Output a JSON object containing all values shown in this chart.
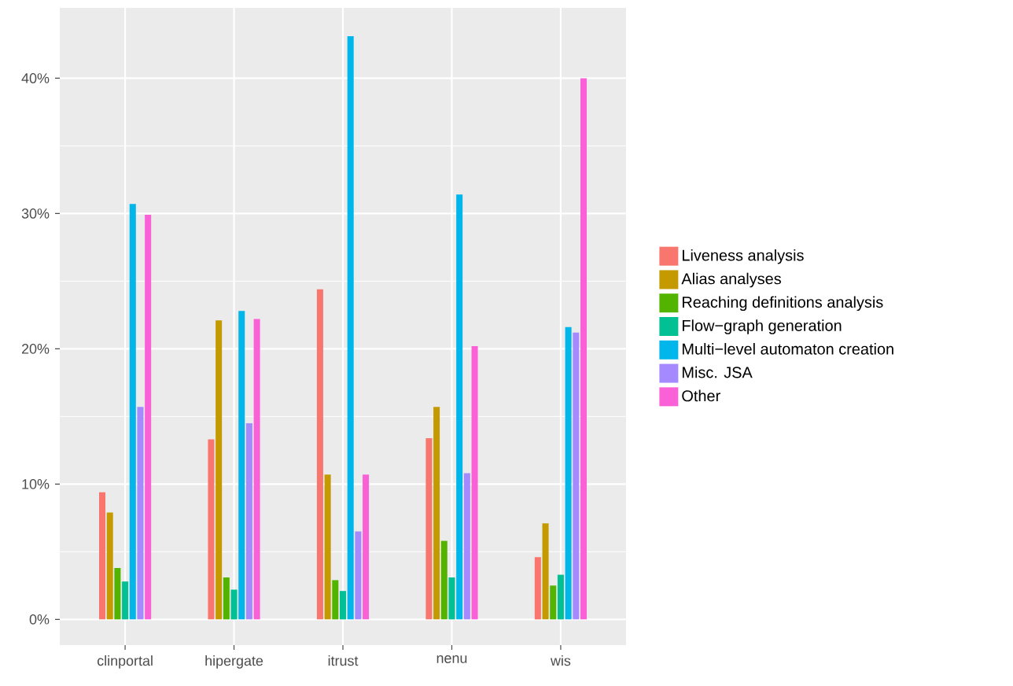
{
  "chart_data": {
    "type": "bar",
    "categories": [
      "clinportal",
      "hipergate",
      "itrust",
      "nenu",
      "wis"
    ],
    "series": [
      {
        "name": "Liveness analysis",
        "color": "#f8766d",
        "values": [
          9.4,
          13.3,
          24.4,
          13.4,
          4.6
        ]
      },
      {
        "name": "Alias analyses",
        "color": "#c49a00",
        "values": [
          7.9,
          22.1,
          10.7,
          15.7,
          7.1
        ]
      },
      {
        "name": "Reaching definitions analysis",
        "color": "#53b400",
        "values": [
          3.8,
          3.1,
          2.9,
          5.8,
          2.5
        ]
      },
      {
        "name": "Flow−graph generation",
        "color": "#00c094",
        "values": [
          2.8,
          2.2,
          2.1,
          3.1,
          3.3
        ]
      },
      {
        "name": "Multi−level automaton creation",
        "color": "#00b6eb",
        "values": [
          30.7,
          22.8,
          43.1,
          31.4,
          21.6
        ]
      },
      {
        "name": "Misc. JSA",
        "color": "#a58aff",
        "values": [
          15.7,
          14.5,
          6.5,
          10.8,
          21.2
        ]
      },
      {
        "name": "Other",
        "color": "#fb61d7",
        "values": [
          29.9,
          22.2,
          10.7,
          20.2,
          40.0
        ]
      }
    ],
    "ylim": [
      -1.9,
      45.2
    ],
    "yticks": [
      {
        "value": 0,
        "label": "0%"
      },
      {
        "value": 10,
        "label": "10%"
      },
      {
        "value": 20,
        "label": "20%"
      },
      {
        "value": 30,
        "label": "30%"
      },
      {
        "value": 40,
        "label": "40%"
      }
    ],
    "grid": true,
    "legend": "right"
  }
}
